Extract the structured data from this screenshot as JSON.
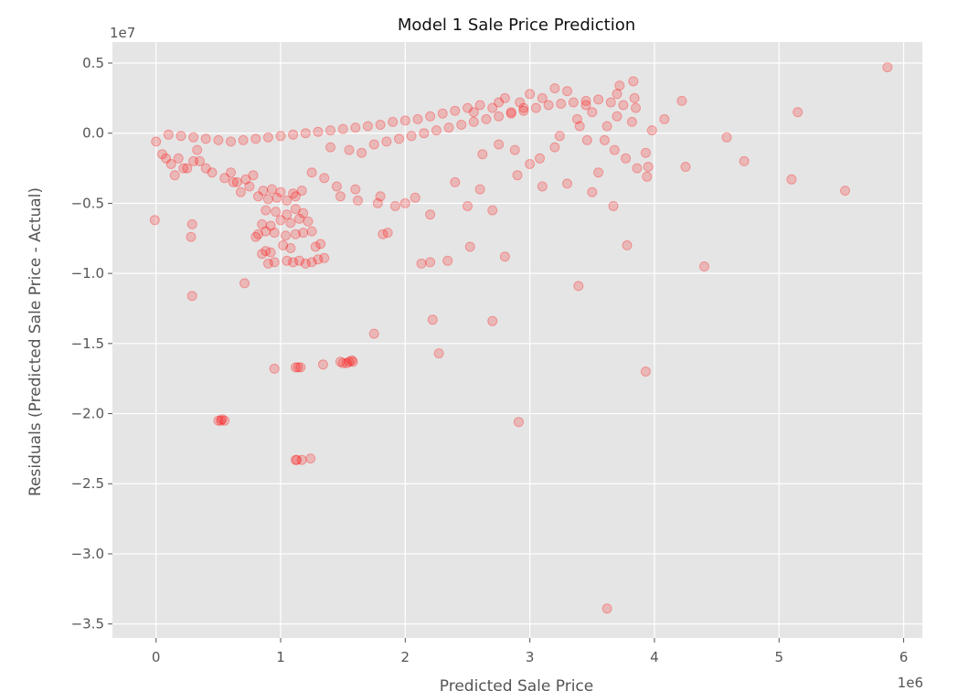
{
  "chart_data": {
    "type": "scatter",
    "title": "Model 1 Sale Price Prediction",
    "xlabel": "Predicted Sale Price",
    "ylabel": "Residuals (Predicted Sale Price - Actual)",
    "x_offset_label": "1e6",
    "y_offset_label": "1e7",
    "xlim": [
      -0.35,
      6.15
    ],
    "ylim": [
      -3.6,
      0.65
    ],
    "x_ticks": [
      0,
      1,
      2,
      3,
      4,
      5,
      6
    ],
    "x_tick_labels": [
      "0",
      "1",
      "2",
      "3",
      "4",
      "5",
      "6"
    ],
    "y_ticks": [
      0.5,
      0.0,
      -0.5,
      -1.0,
      -1.5,
      -2.0,
      -2.5,
      -3.0,
      -3.5
    ],
    "y_tick_labels": [
      "0.5",
      "0.0",
      "−0.5",
      "−1.0",
      "−1.5",
      "−2.0",
      "−2.5",
      "−3.0",
      "−3.5"
    ],
    "grid": true,
    "marker_color": "#ff0000",
    "marker_alpha": 0.2,
    "background_color": "#e5e5e5",
    "series": [
      {
        "x": [
          5.87,
          5.15,
          4.58,
          4.72,
          4.25,
          4.22,
          4.08,
          3.98,
          3.93,
          3.95,
          3.94,
          3.86,
          3.84,
          3.83,
          3.72,
          3.7,
          3.77,
          3.78,
          3.68,
          3.67,
          3.55,
          3.6,
          3.62,
          3.45,
          3.5,
          3.38,
          3.3,
          3.2,
          3.1,
          3.0,
          2.95,
          2.92,
          2.8,
          2.85,
          2.75,
          2.7,
          2.6,
          2.55,
          2.5,
          2.4,
          2.3,
          2.2,
          2.1,
          2.0,
          1.9,
          1.8,
          1.7,
          1.6,
          1.5,
          1.4,
          1.3,
          1.2,
          1.1,
          1.0,
          0.9,
          0.8,
          0.7,
          0.6,
          0.5,
          0.4,
          0.3,
          0.2,
          0.1,
          0.0,
          5.53,
          5.1,
          4.4,
          3.93,
          3.39,
          3.62,
          2.91,
          2.7,
          2.8,
          2.27,
          2.22,
          1.75,
          2.13,
          2.2,
          2.34,
          2.52,
          1.82,
          1.86,
          0.71,
          0.29,
          0.28,
          0.29,
          -0.01,
          0.95,
          1.12,
          1.14,
          1.16,
          1.12,
          1.34,
          1.48,
          1.5,
          1.53,
          1.55,
          1.58,
          1.57,
          0.5,
          0.52,
          0.55,
          0.53,
          1.13,
          1.17,
          1.24,
          0.9,
          0.95,
          1.05,
          1.1,
          1.15,
          1.2,
          1.25,
          1.3,
          1.35,
          0.85,
          0.88,
          0.92,
          1.02,
          1.08,
          1.28,
          1.32,
          0.8,
          0.82,
          0.88,
          0.95,
          1.04,
          1.12,
          1.18,
          1.25,
          0.85,
          0.92,
          1.0,
          1.08,
          1.15,
          1.22,
          0.88,
          0.96,
          1.05,
          1.12,
          1.18,
          0.9,
          0.97,
          1.05,
          1.12,
          0.86,
          0.93,
          1.0,
          1.1,
          1.17,
          0.65,
          0.72,
          0.78,
          0.6,
          0.55,
          0.45,
          0.4,
          0.35,
          0.25,
          0.18,
          0.12,
          0.05,
          1.4,
          1.55,
          1.65,
          1.75,
          1.85,
          1.95,
          2.05,
          2.15,
          2.25,
          2.35,
          2.45,
          2.55,
          2.65,
          2.75,
          2.85,
          2.95,
          3.05,
          3.15,
          3.25,
          3.35,
          3.45,
          3.55,
          3.65,
          3.75,
          3.85,
          2.4,
          2.6,
          2.9,
          3.1,
          3.3,
          3.5,
          2.5,
          2.7,
          2.2,
          2.0,
          1.8,
          1.6,
          1.45,
          1.35,
          1.25,
          2.62,
          3.0,
          3.2,
          3.46,
          3.7,
          3.82,
          2.75,
          2.88,
          3.08,
          3.24,
          3.4,
          0.62,
          0.68,
          0.75,
          0.82,
          0.3,
          0.33,
          0.22,
          0.15,
          0.08,
          1.48,
          1.62,
          1.78,
          1.92,
          2.08
        ],
        "y": [
          0.47,
          0.15,
          -0.03,
          -0.2,
          -0.24,
          0.23,
          0.1,
          0.02,
          -0.14,
          -0.24,
          -0.31,
          -0.25,
          0.25,
          0.37,
          0.34,
          0.28,
          -0.18,
          -0.8,
          -0.12,
          -0.52,
          -0.28,
          -0.05,
          0.05,
          0.2,
          0.15,
          0.1,
          0.3,
          0.32,
          0.25,
          0.28,
          0.18,
          0.22,
          0.25,
          0.15,
          0.22,
          0.18,
          0.2,
          0.15,
          0.18,
          0.16,
          0.14,
          0.12,
          0.1,
          0.09,
          0.08,
          0.06,
          0.05,
          0.04,
          0.03,
          0.02,
          0.01,
          0.0,
          -0.01,
          -0.02,
          -0.03,
          -0.04,
          -0.05,
          -0.06,
          -0.05,
          -0.04,
          -0.03,
          -0.02,
          -0.01,
          -0.06,
          -0.41,
          -0.33,
          -0.95,
          -1.7,
          -1.09,
          -3.39,
          -2.06,
          -1.34,
          -0.88,
          -1.57,
          -1.33,
          -1.43,
          -0.93,
          -0.92,
          -0.91,
          -0.81,
          -0.72,
          -0.71,
          -1.07,
          -1.16,
          -0.74,
          -0.65,
          -0.62,
          -1.68,
          -1.67,
          -1.67,
          -1.67,
          -2.33,
          -1.65,
          -1.63,
          -1.64,
          -1.64,
          -1.63,
          -1.63,
          -1.62,
          -2.05,
          -2.05,
          -2.05,
          -2.04,
          -2.33,
          -2.33,
          -2.32,
          -0.93,
          -0.92,
          -0.91,
          -0.92,
          -0.91,
          -0.93,
          -0.92,
          -0.9,
          -0.89,
          -0.86,
          -0.84,
          -0.85,
          -0.8,
          -0.82,
          -0.81,
          -0.79,
          -0.74,
          -0.72,
          -0.7,
          -0.71,
          -0.73,
          -0.72,
          -0.71,
          -0.7,
          -0.65,
          -0.66,
          -0.62,
          -0.64,
          -0.61,
          -0.63,
          -0.55,
          -0.56,
          -0.58,
          -0.54,
          -0.57,
          -0.47,
          -0.46,
          -0.48,
          -0.45,
          -0.41,
          -0.4,
          -0.42,
          -0.43,
          -0.41,
          -0.35,
          -0.33,
          -0.3,
          -0.28,
          -0.32,
          -0.28,
          -0.25,
          -0.2,
          -0.25,
          -0.18,
          -0.22,
          -0.15,
          -0.1,
          -0.12,
          -0.14,
          -0.08,
          -0.06,
          -0.04,
          -0.02,
          0.0,
          0.02,
          0.04,
          0.06,
          0.08,
          0.1,
          0.12,
          0.14,
          0.16,
          0.18,
          0.2,
          0.21,
          0.22,
          0.23,
          0.24,
          0.22,
          0.2,
          0.18,
          -0.35,
          -0.4,
          -0.3,
          -0.38,
          -0.36,
          -0.42,
          -0.52,
          -0.55,
          -0.58,
          -0.5,
          -0.45,
          -0.4,
          -0.38,
          -0.32,
          -0.28,
          -0.15,
          -0.22,
          -0.1,
          -0.05,
          0.12,
          0.08,
          -0.08,
          -0.12,
          -0.18,
          -0.02,
          0.05,
          -0.35,
          -0.42,
          -0.38,
          -0.45,
          -0.2,
          -0.12,
          -0.25,
          -0.3,
          -0.18,
          -0.45,
          -0.48,
          -0.5,
          -0.52,
          -0.46
        ]
      }
    ]
  }
}
